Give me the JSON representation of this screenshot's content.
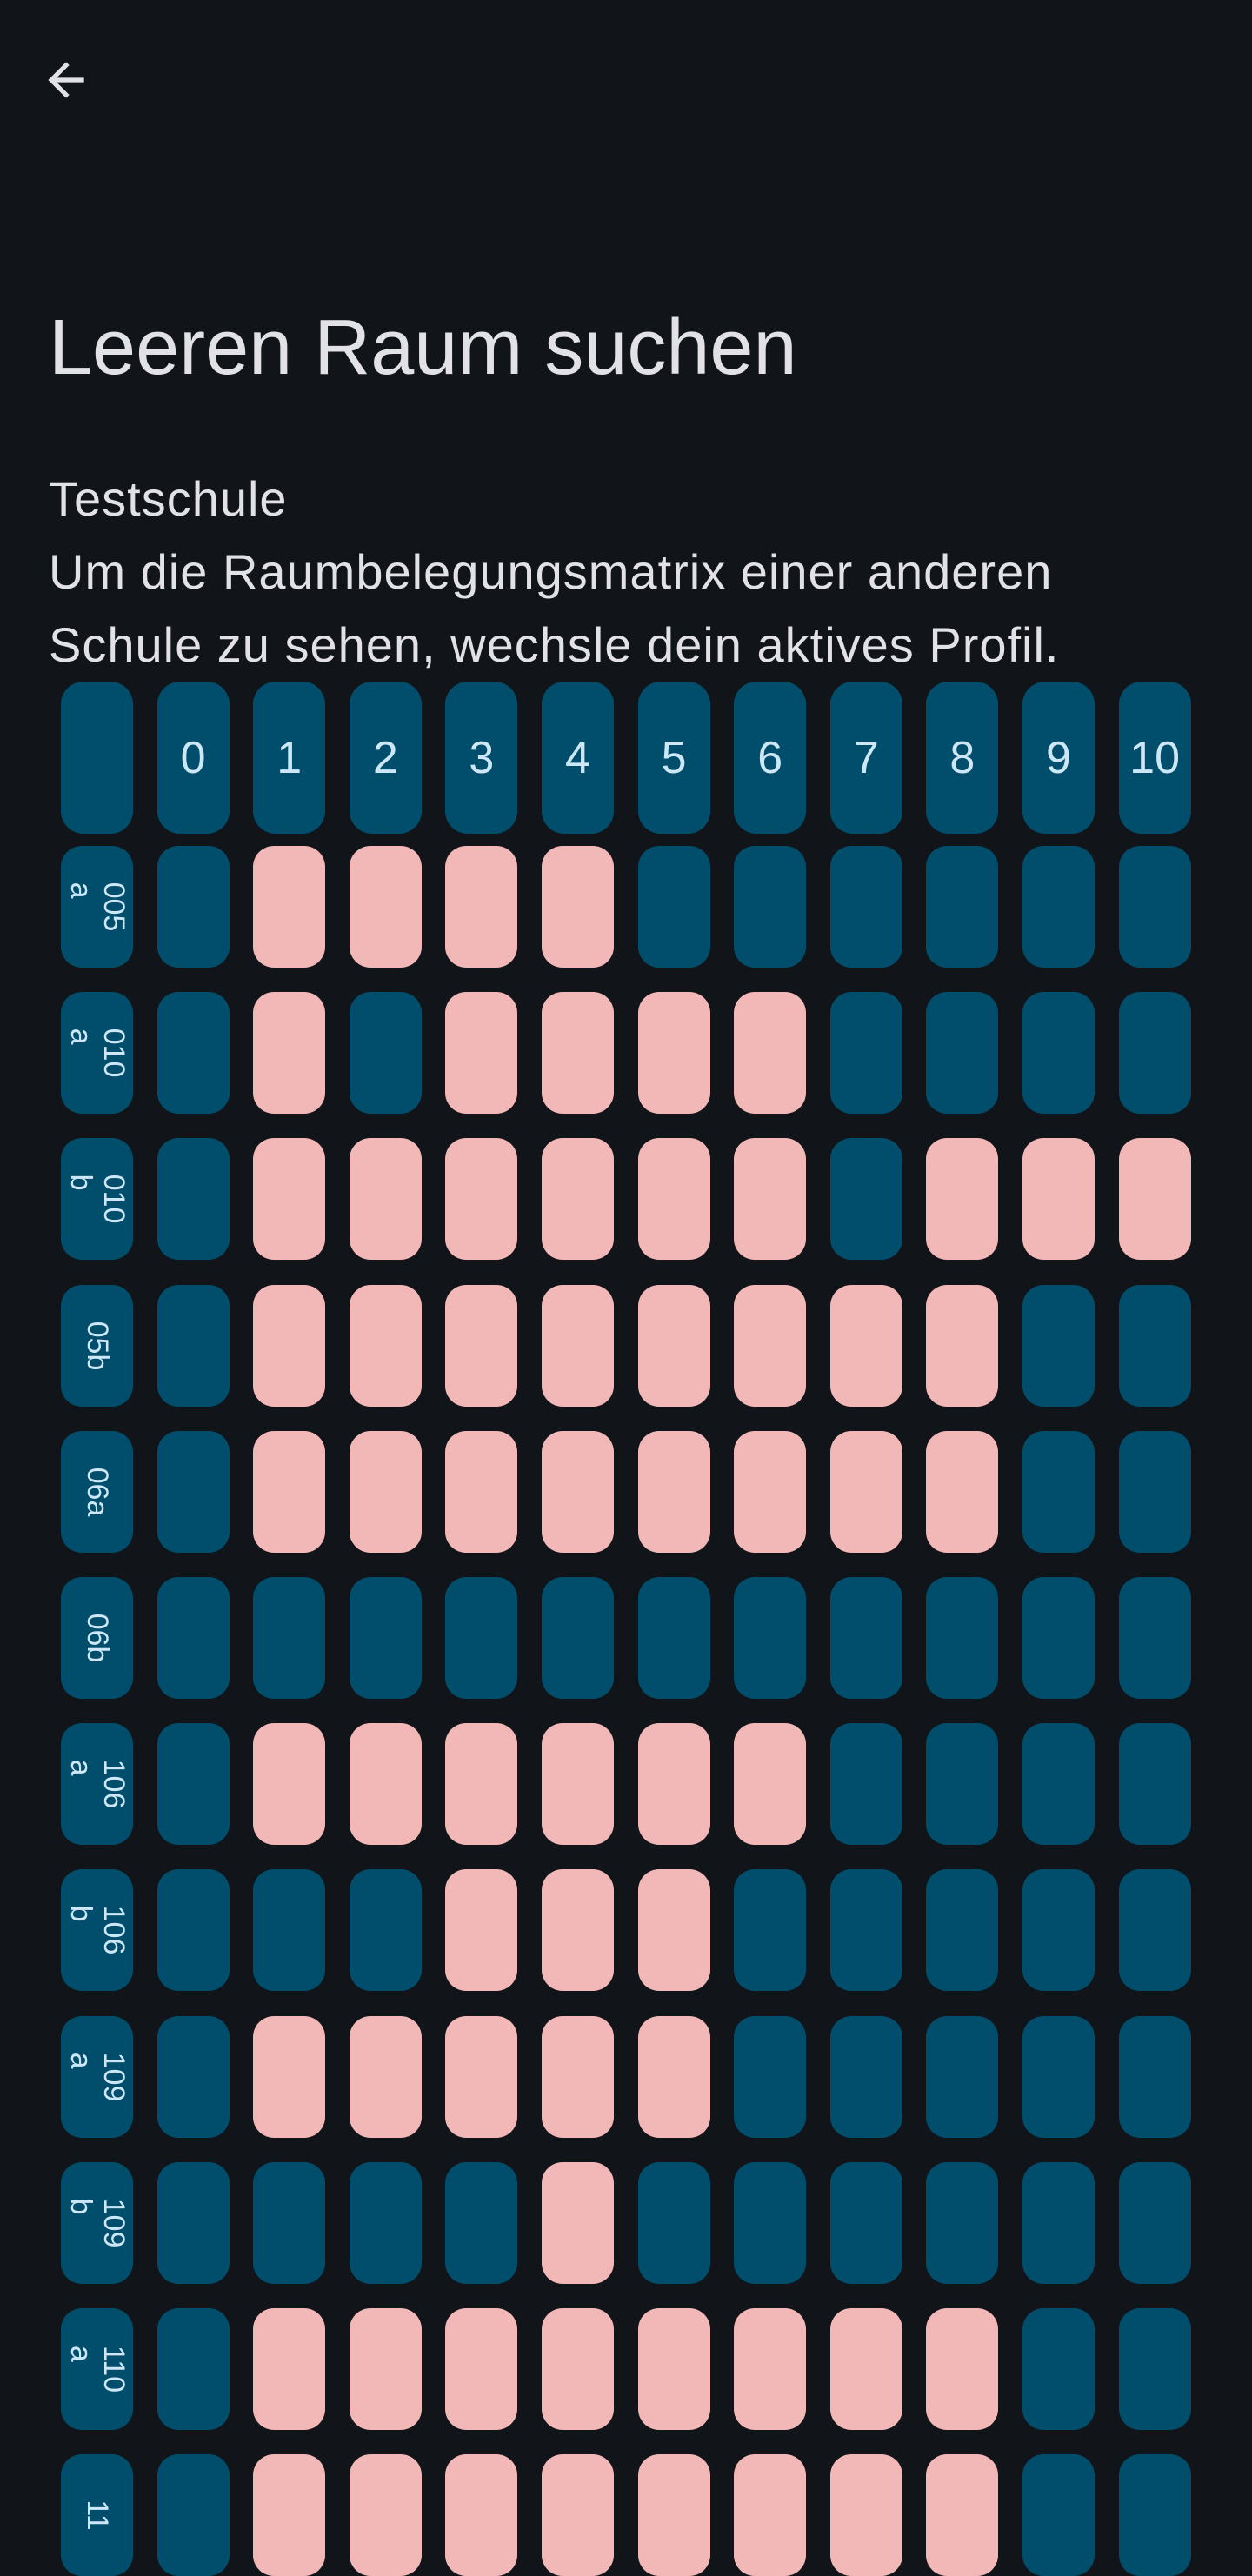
{
  "header": {
    "back_icon": "arrow-left-icon",
    "title": "Leeren Raum suchen"
  },
  "school_name": "Testschule",
  "hint": "Um die Raumbelegungsmatrix einer anderen Schule zu sehen, wechsle dein aktives Profil.",
  "colors": {
    "background": "#111418",
    "free": "#004e6b",
    "occupied": "#f2b8b8",
    "on_free": "#cde7f7"
  },
  "matrix": {
    "lessons": [
      "0",
      "1",
      "2",
      "3",
      "4",
      "5",
      "6",
      "7",
      "8",
      "9",
      "10"
    ],
    "rooms": [
      {
        "name": "005\na",
        "occupied": [
          0,
          1,
          1,
          1,
          1,
          0,
          0,
          0,
          0,
          0,
          0
        ]
      },
      {
        "name": "010\na",
        "occupied": [
          0,
          1,
          0,
          1,
          1,
          1,
          1,
          0,
          0,
          0,
          0
        ]
      },
      {
        "name": "010\nb",
        "occupied": [
          0,
          1,
          1,
          1,
          1,
          1,
          1,
          0,
          1,
          1,
          1
        ]
      },
      {
        "name": "05b",
        "occupied": [
          0,
          1,
          1,
          1,
          1,
          1,
          1,
          1,
          1,
          0,
          0
        ]
      },
      {
        "name": "06a",
        "occupied": [
          0,
          1,
          1,
          1,
          1,
          1,
          1,
          1,
          1,
          0,
          0
        ]
      },
      {
        "name": "06b",
        "occupied": [
          0,
          0,
          0,
          0,
          0,
          0,
          0,
          0,
          0,
          0,
          0
        ]
      },
      {
        "name": "106\na",
        "occupied": [
          0,
          1,
          1,
          1,
          1,
          1,
          1,
          0,
          0,
          0,
          0
        ]
      },
      {
        "name": "106\nb",
        "occupied": [
          0,
          0,
          0,
          1,
          1,
          1,
          0,
          0,
          0,
          0,
          0
        ]
      },
      {
        "name": "109\na",
        "occupied": [
          0,
          1,
          1,
          1,
          1,
          1,
          0,
          0,
          0,
          0,
          0
        ]
      },
      {
        "name": "109\nb",
        "occupied": [
          0,
          0,
          0,
          0,
          1,
          0,
          0,
          0,
          0,
          0,
          0
        ]
      },
      {
        "name": "110\na",
        "occupied": [
          0,
          1,
          1,
          1,
          1,
          1,
          1,
          1,
          1,
          0,
          0
        ]
      },
      {
        "name": "11",
        "occupied": [
          0,
          1,
          1,
          1,
          1,
          1,
          1,
          1,
          1,
          0,
          0
        ]
      }
    ]
  }
}
